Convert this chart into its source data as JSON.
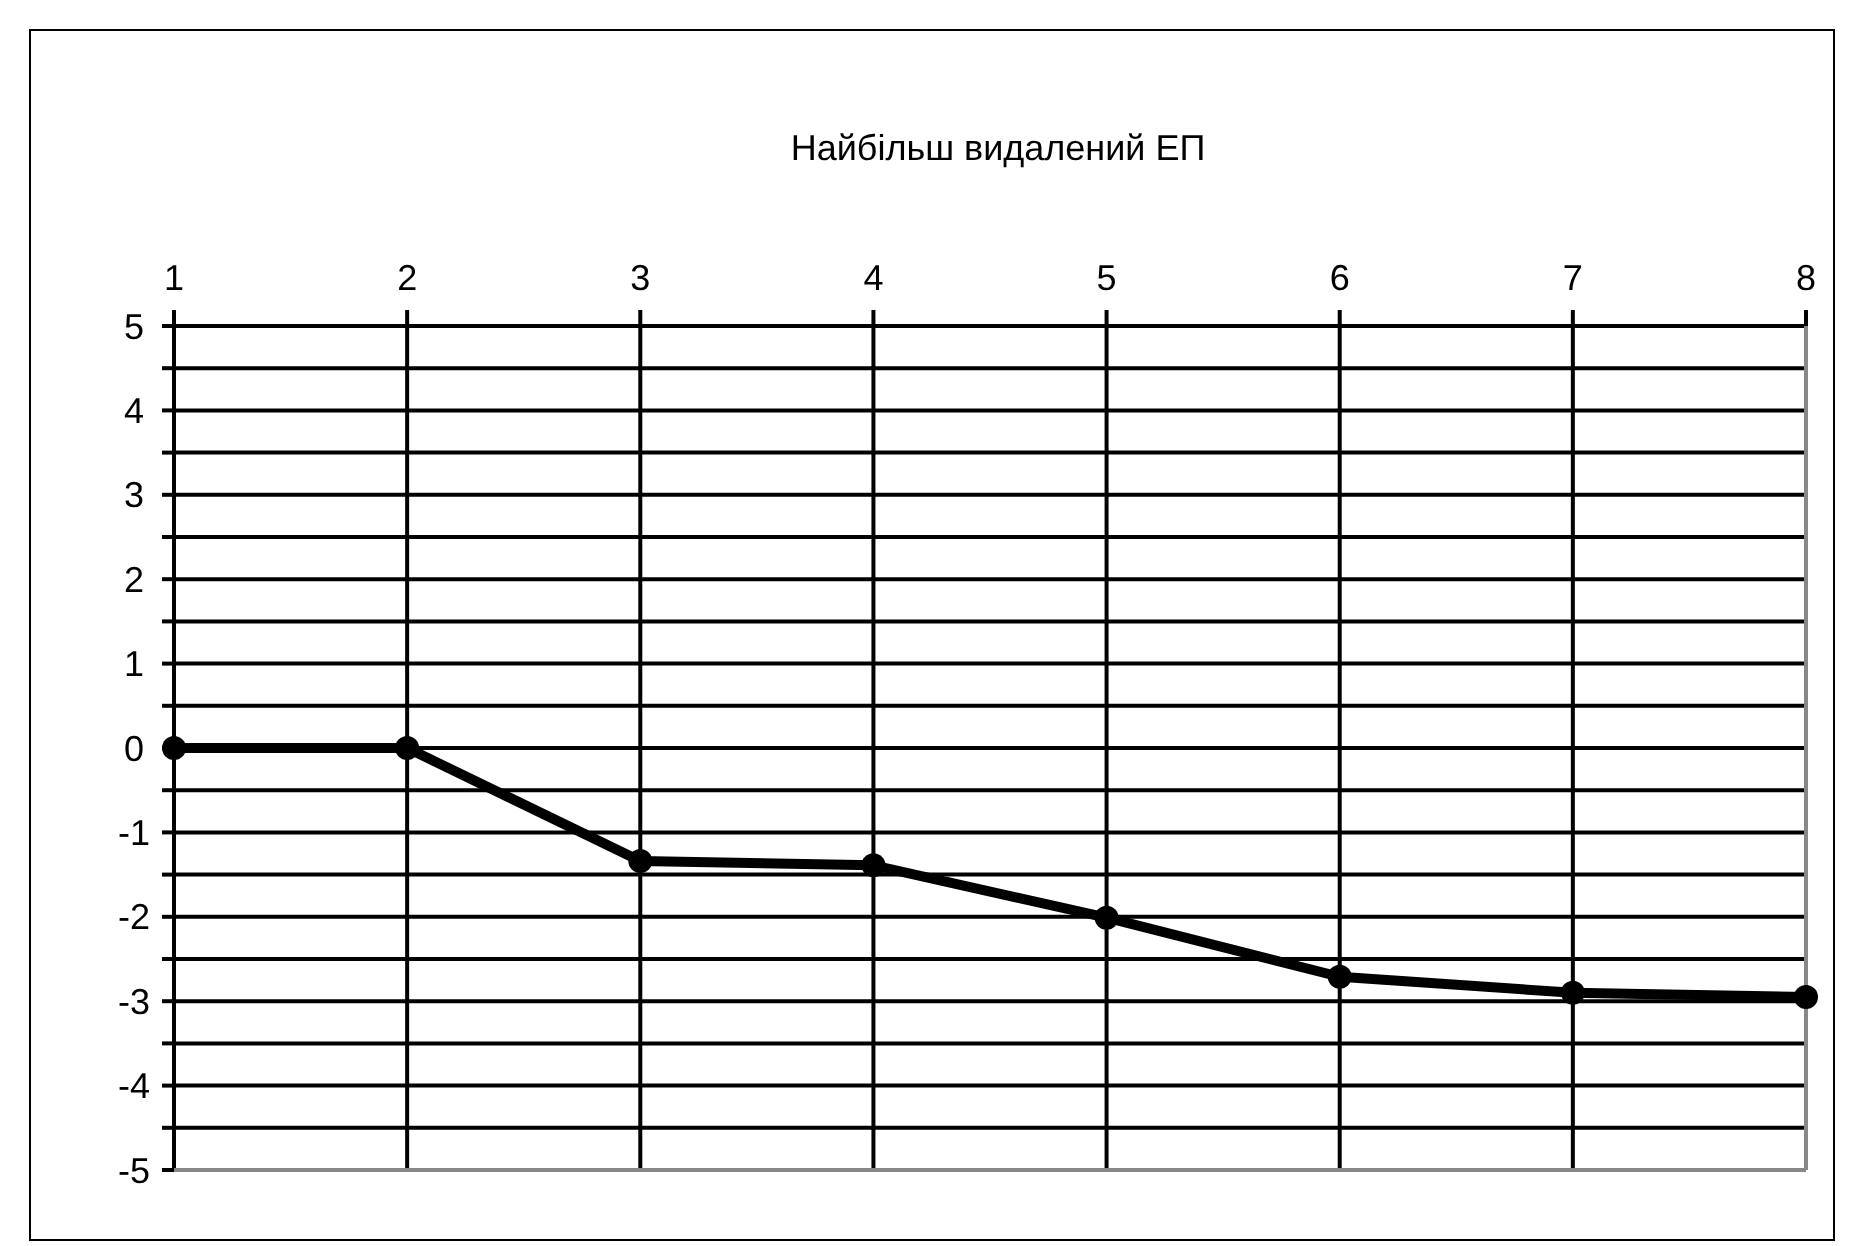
{
  "chart_data": {
    "type": "line",
    "title": "Найбільш видалений ЕП",
    "categories": [
      "1",
      "2",
      "3",
      "4",
      "5",
      "6",
      "7",
      "8"
    ],
    "series": [
      {
        "color": "#000000",
        "values": [
          0,
          0,
          -1.34,
          -1.39,
          -2.01,
          -2.71,
          -2.9,
          -2.95
        ]
      }
    ],
    "ylim": [
      -5,
      5
    ],
    "yticks": [
      -5,
      {
        "value": -4.5,
        "label": null
      },
      -4,
      {
        "value": -3.5,
        "label": null
      },
      -3,
      {
        "value": -2.5,
        "label": null
      },
      -2,
      {
        "value": -1.5,
        "label": null
      },
      -1,
      {
        "value": -0.5,
        "label": null
      },
      0,
      {
        "value": 0.5,
        "label": null
      },
      1,
      {
        "value": 1.5,
        "label": null
      },
      2,
      {
        "value": 2.5,
        "label": null
      },
      3,
      {
        "value": 3.5,
        "label": null
      },
      4,
      {
        "value": 4.5,
        "label": null
      },
      5
    ],
    "grid": true,
    "marker": "circle",
    "line_style": "solid"
  }
}
